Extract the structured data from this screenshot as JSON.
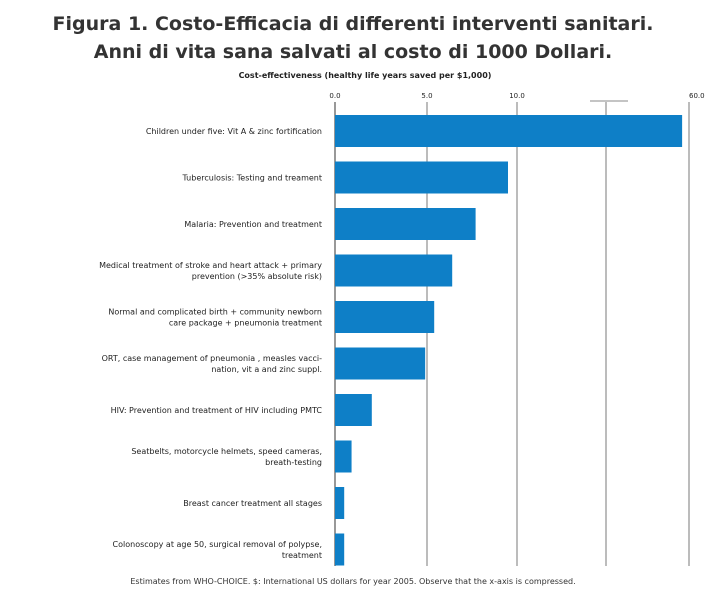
{
  "chart_data": {
    "type": "bar",
    "orientation": "horizontal",
    "title": [
      "Figura 1. Costo-Efficacia di differenti interventi sanitari.",
      "Anni di vita sana salvati al costo di 1000 Dollari."
    ],
    "subtitle": "Cost-effectiveness (healthy life years saved per $1,000)",
    "categories": [
      [
        "Children under five: Vit A & zinc fortification"
      ],
      [
        "Tuberculosis: Testing and treament"
      ],
      [
        "Malaria: Prevention and treatment"
      ],
      [
        "Medical treatment of stroke and heart attack + primary",
        "prevention (>35% absolute risk)"
      ],
      [
        "Normal and complicated birth + community newborn",
        "care package + pneumonia treatment"
      ],
      [
        "ORT, case management of pneumonia , measles vacci-",
        "nation,  vit a and zinc suppl."
      ],
      [
        "HIV: Prevention and treatment of HIV including PMTC"
      ],
      [
        "Seatbelts, motorcycle helmets, speed cameras,",
        "breath-testing"
      ],
      [
        "Breast cancer treatment all stages"
      ],
      [
        "Colonoscopy at age 50, surgical removal of polypse,",
        "treatment"
      ]
    ],
    "values": [
      58.0,
      9.5,
      7.7,
      6.4,
      5.4,
      4.9,
      2.0,
      0.9,
      0.5,
      0.5
    ],
    "xticks": [
      "0.0",
      "5.0",
      "10.0",
      "60.0"
    ],
    "xtick_values": [
      0,
      5,
      10,
      60
    ],
    "xlim": [
      0,
      60
    ],
    "axis_note": "x-axis compressed (break between 10.0 and 60.0)",
    "grid": true,
    "bar_color": "#0e7fc7",
    "footnote": "Estimates from WHO-CHOICE. $: International US dollars for year 2005. Observe that the x-axis is compressed."
  }
}
